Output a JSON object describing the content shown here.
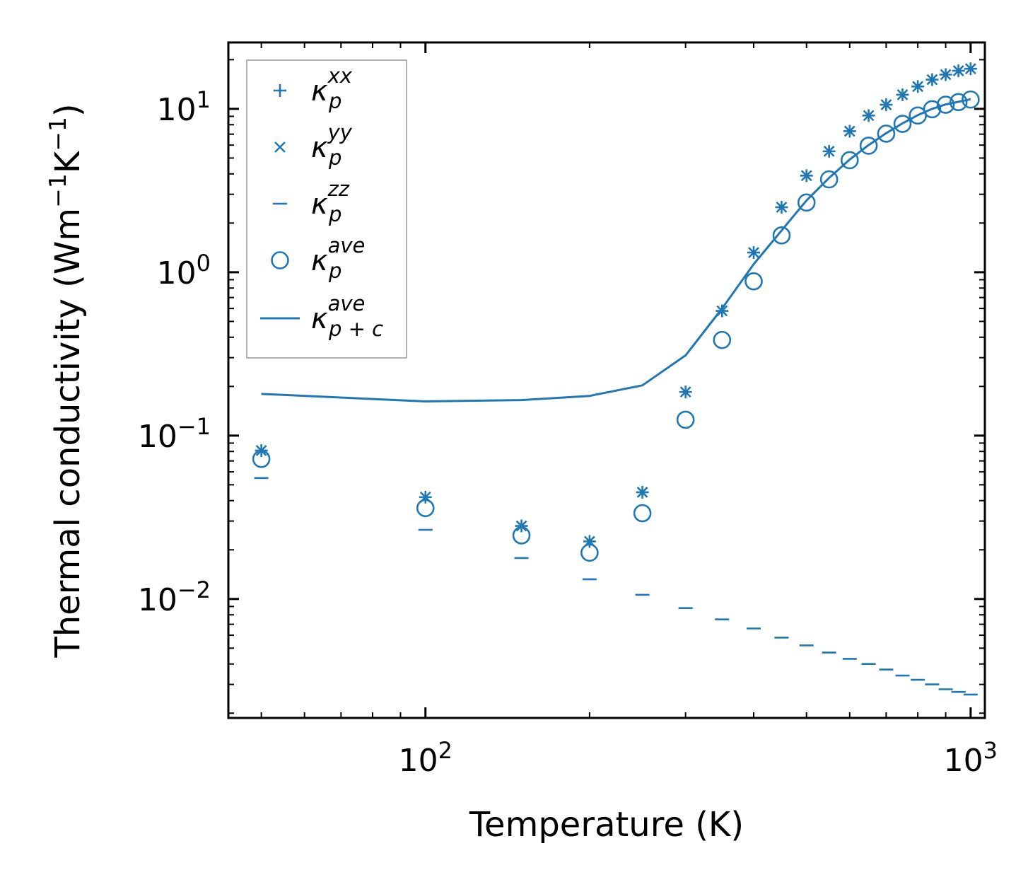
{
  "chart_data": {
    "type": "scatter",
    "title": "",
    "xlabel": "Temperature (K)",
    "ylabel": "Thermal conductivity (Wm⁻¹K⁻¹)",
    "xscale": "log",
    "yscale": "log",
    "xlim": [
      43.5,
      1062
    ],
    "ylim": [
      0.00187,
      25.5
    ],
    "grid": false,
    "legend_position": "top-left",
    "colors": {
      "series": "#1f77b4",
      "axis": "#000000",
      "legend_border": "#999999"
    },
    "x_ticks": [
      {
        "value": 100,
        "base": "10",
        "exp": "2"
      },
      {
        "value": 1000,
        "base": "10",
        "exp": "3"
      }
    ],
    "y_ticks": [
      {
        "value": 0.01,
        "base": "10",
        "exp": "−2"
      },
      {
        "value": 0.1,
        "base": "10",
        "exp": "−1"
      },
      {
        "value": 1,
        "base": "10",
        "exp": "0"
      },
      {
        "value": 10,
        "base": "10",
        "exp": "1"
      }
    ],
    "x": [
      50,
      100,
      150,
      200,
      250,
      300,
      350,
      400,
      450,
      500,
      550,
      600,
      650,
      700,
      750,
      800,
      850,
      900,
      950,
      1000
    ],
    "series": [
      {
        "name": "kxx",
        "symbol": "κ",
        "sub": "p",
        "sup": "xx",
        "marker": "plus",
        "values": [
          0.081,
          0.042,
          0.028,
          0.0225,
          0.045,
          0.185,
          0.58,
          1.32,
          2.5,
          3.9,
          5.5,
          7.3,
          9.1,
          10.6,
          12.2,
          13.7,
          15.1,
          16.2,
          17.1,
          17.6
        ]
      },
      {
        "name": "kyy",
        "symbol": "κ",
        "sub": "p",
        "sup": "yy",
        "marker": "x",
        "values": [
          0.081,
          0.042,
          0.028,
          0.0225,
          0.045,
          0.185,
          0.58,
          1.32,
          2.5,
          3.9,
          5.5,
          7.3,
          9.1,
          10.6,
          12.2,
          13.7,
          15.1,
          16.2,
          17.1,
          17.6
        ]
      },
      {
        "name": "kzz",
        "symbol": "κ",
        "sub": "p",
        "sup": "zz",
        "marker": "hline",
        "values": [
          0.055,
          0.0265,
          0.0178,
          0.0132,
          0.0106,
          0.0088,
          0.0075,
          0.0066,
          0.0058,
          0.0052,
          0.0047,
          0.0043,
          0.004,
          0.0037,
          0.0034,
          0.0032,
          0.003,
          0.0028,
          0.0027,
          0.0026
        ]
      },
      {
        "name": "kave",
        "symbol": "κ",
        "sub": "p",
        "sup": "ave",
        "marker": "circle",
        "values": [
          0.072,
          0.036,
          0.0245,
          0.0192,
          0.0335,
          0.125,
          0.385,
          0.88,
          1.68,
          2.67,
          3.7,
          4.85,
          5.95,
          7.05,
          8.1,
          9.1,
          9.95,
          10.6,
          11.0,
          11.4
        ]
      },
      {
        "name": "kave_pc",
        "symbol": "κ",
        "sub": "p + c",
        "sup": "ave",
        "marker": "line",
        "values": [
          0.18,
          0.162,
          0.165,
          0.175,
          0.203,
          0.31,
          0.6,
          1.12,
          1.8,
          2.75,
          3.78,
          4.9,
          6.0,
          7.1,
          8.15,
          9.15,
          10.0,
          10.65,
          11.05,
          11.45
        ]
      }
    ]
  }
}
